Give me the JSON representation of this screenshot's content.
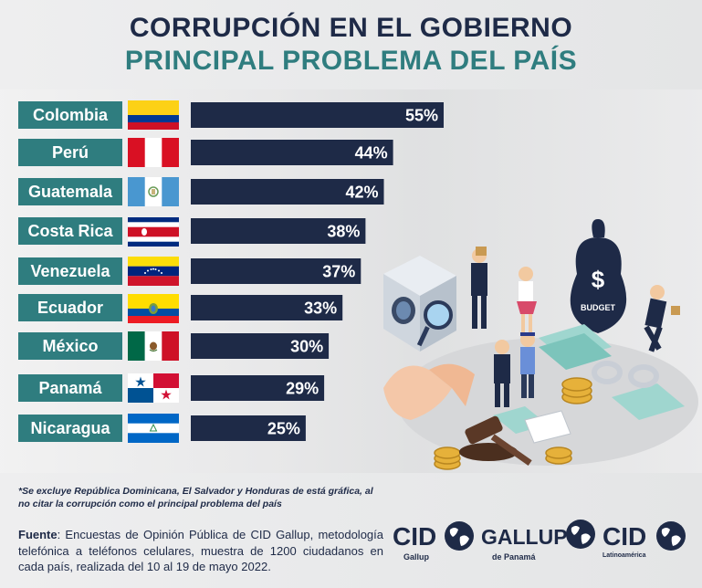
{
  "title_line1": "CORRUPCIÓN EN EL GOBIERNO",
  "title_line2": "PRINCIPAL PROBLEMA DEL PAÍS",
  "chart_data": {
    "type": "bar",
    "orientation": "horizontal",
    "categories": [
      "Colombia",
      "Perú",
      "Guatemala",
      "Costa Rica",
      "Venezuela",
      "Ecuador",
      "México",
      "Panamá",
      "Nicaragua"
    ],
    "values": [
      55,
      44,
      42,
      38,
      37,
      33,
      30,
      29,
      25
    ],
    "value_labels": [
      "55%",
      "44%",
      "42%",
      "38%",
      "37%",
      "33%",
      "30%",
      "29%",
      "25%"
    ],
    "unit": "%",
    "bar_color": "#1e2a47",
    "label_color": "#2f7d7f",
    "legend": "none",
    "grid": false
  },
  "footnote": "*Se excluye República Dominicana, El Salvador y Honduras de está gráfica, al no citar la corrupción como el principal problema del país",
  "source": {
    "label": "Fuente",
    "text": ": Encuestas de Opinión Pública de CID Gallup, metodología telefónica a teléfonos celulares, muestra de 1200 ciudadanos en cada país, realizada del 10 al 19 de mayo 2022."
  },
  "logos": [
    {
      "main": "CID",
      "sub": "Gallup"
    },
    {
      "main": "GALLUP",
      "sub": "de Panamá"
    },
    {
      "main": "CID",
      "sub": "Latinoamérica"
    }
  ],
  "illustration": {
    "money_bag_text": "BUDGET",
    "bag_symbol": "$"
  },
  "colors": {
    "navy": "#1e2a47",
    "teal": "#2f7d7f"
  }
}
